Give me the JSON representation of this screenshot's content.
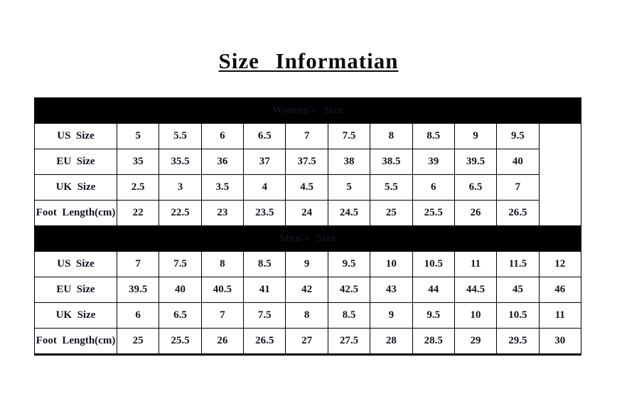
{
  "title": "Size Informatian",
  "colors": {
    "header_bg": "#000000",
    "header_text": "#DAA520",
    "border": "#000000",
    "cell_text": "#13131f",
    "page_bg": "#ffffff"
  },
  "table": {
    "sections": [
      {
        "header": "Women's Size",
        "trailing_empty_cell": true,
        "rows": [
          {
            "label": "US Size",
            "values": [
              "5",
              "5.5",
              "6",
              "6.5",
              "7",
              "7.5",
              "8",
              "8.5",
              "9",
              "9.5"
            ]
          },
          {
            "label": "EU Size",
            "values": [
              "35",
              "35.5",
              "36",
              "37",
              "37.5",
              "38",
              "38.5",
              "39",
              "39.5",
              "40"
            ]
          },
          {
            "label": "UK Size",
            "values": [
              "2.5",
              "3",
              "3.5",
              "4",
              "4.5",
              "5",
              "5.5",
              "6",
              "6.5",
              "7"
            ]
          },
          {
            "label": "Foot Length(cm)",
            "values": [
              "22",
              "22.5",
              "23",
              "23.5",
              "24",
              "24.5",
              "25",
              "25.5",
              "26",
              "26.5"
            ]
          }
        ]
      },
      {
        "header": "Men's Size",
        "trailing_empty_cell": false,
        "rows": [
          {
            "label": "US Size",
            "values": [
              "7",
              "7.5",
              "8",
              "8.5",
              "9",
              "9.5",
              "10",
              "10.5",
              "11",
              "11.5",
              "12"
            ]
          },
          {
            "label": "EU Size",
            "values": [
              "39.5",
              "40",
              "40.5",
              "41",
              "42",
              "42.5",
              "43",
              "44",
              "44.5",
              "45",
              "46"
            ]
          },
          {
            "label": "UK Size",
            "values": [
              "6",
              "6.5",
              "7",
              "7.5",
              "8",
              "8.5",
              "9",
              "9.5",
              "10",
              "10.5",
              "11"
            ]
          },
          {
            "label": "Foot Length(cm)",
            "values": [
              "25",
              "25.5",
              "26",
              "26.5",
              "27",
              "27.5",
              "28",
              "28.5",
              "29",
              "29.5",
              "30"
            ]
          }
        ]
      }
    ],
    "total_columns": 12
  }
}
